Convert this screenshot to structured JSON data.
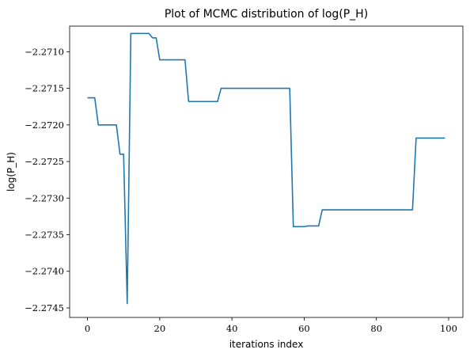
{
  "chart_data": {
    "type": "line",
    "title": "Plot of MCMC distribution of log(P_H)",
    "xlabel": "iterations index",
    "ylabel": "log(P_H)",
    "xlim": [
      -4.95,
      103.95
    ],
    "ylim": [
      -2.27463,
      -2.27065
    ],
    "x_ticks": [
      0,
      20,
      40,
      60,
      80,
      100
    ],
    "x_tick_labels": [
      "0",
      "20",
      "40",
      "60",
      "80",
      "100"
    ],
    "y_ticks": [
      -2.271,
      -2.2715,
      -2.272,
      -2.2725,
      -2.273,
      -2.2735,
      -2.274,
      -2.2745
    ],
    "y_tick_labels": [
      "−2.2710",
      "−2.2715",
      "−2.2720",
      "−2.2725",
      "−2.2730",
      "−2.2735",
      "−2.2740",
      "−2.2745"
    ],
    "grid": false,
    "color": "#1f77b4",
    "series": [
      {
        "x": [
          0,
          1,
          2,
          3,
          4,
          5,
          6,
          7,
          8,
          9,
          10,
          11,
          12,
          13,
          14,
          15,
          16,
          17,
          18,
          19,
          20,
          21,
          22,
          23,
          24,
          25,
          26,
          27,
          28,
          29,
          30,
          31,
          32,
          33,
          34,
          35,
          36,
          37,
          38,
          39,
          40,
          41,
          42,
          43,
          44,
          45,
          46,
          47,
          48,
          49,
          50,
          51,
          52,
          53,
          54,
          55,
          56,
          57,
          58,
          59,
          60,
          61,
          62,
          63,
          64,
          65,
          66,
          67,
          68,
          69,
          70,
          71,
          72,
          73,
          74,
          75,
          76,
          77,
          78,
          79,
          80,
          81,
          82,
          83,
          84,
          85,
          86,
          87,
          88,
          89,
          90,
          91,
          92,
          93,
          94,
          95,
          96,
          97,
          98,
          99
        ],
        "values": [
          -2.27163,
          -2.27163,
          -2.27163,
          -2.272,
          -2.272,
          -2.272,
          -2.272,
          -2.272,
          -2.272,
          -2.2724,
          -2.2724,
          -2.27444,
          -2.27075,
          -2.27075,
          -2.27075,
          -2.27075,
          -2.27075,
          -2.27075,
          -2.27081,
          -2.27081,
          -2.27111,
          -2.27111,
          -2.27111,
          -2.27111,
          -2.27111,
          -2.27111,
          -2.27111,
          -2.27111,
          -2.27168,
          -2.27168,
          -2.27168,
          -2.27168,
          -2.27168,
          -2.27168,
          -2.27168,
          -2.27168,
          -2.27168,
          -2.2715,
          -2.2715,
          -2.2715,
          -2.2715,
          -2.2715,
          -2.2715,
          -2.2715,
          -2.2715,
          -2.2715,
          -2.2715,
          -2.2715,
          -2.2715,
          -2.2715,
          -2.2715,
          -2.2715,
          -2.2715,
          -2.2715,
          -2.2715,
          -2.2715,
          -2.2715,
          -2.27339,
          -2.27339,
          -2.27339,
          -2.27339,
          -2.27338,
          -2.27338,
          -2.27338,
          -2.27338,
          -2.27316,
          -2.27316,
          -2.27316,
          -2.27316,
          -2.27316,
          -2.27316,
          -2.27316,
          -2.27316,
          -2.27316,
          -2.27316,
          -2.27316,
          -2.27316,
          -2.27316,
          -2.27316,
          -2.27316,
          -2.27316,
          -2.27316,
          -2.27316,
          -2.27316,
          -2.27316,
          -2.27316,
          -2.27316,
          -2.27316,
          -2.27316,
          -2.27316,
          -2.27316,
          -2.27218,
          -2.27218,
          -2.27218,
          -2.27218,
          -2.27218,
          -2.27218,
          -2.27218,
          -2.27218,
          -2.27218
        ]
      }
    ]
  }
}
